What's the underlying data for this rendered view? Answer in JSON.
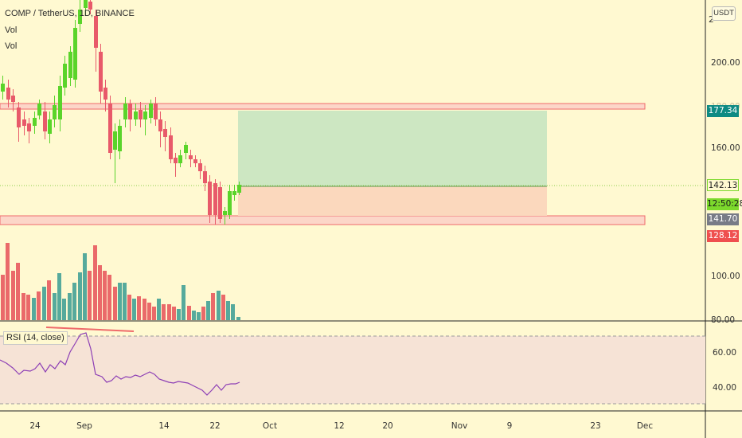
{
  "header": {
    "symbol_title": "COMP / TetherUS, 1D, BINANCE",
    "vol_label_1": "Vol",
    "vol_label_2": "Vol"
  },
  "currency_button": "USDT",
  "price_axis": {
    "top_partial": "2",
    "ticks": [
      "200.00",
      "160.00",
      "100.00",
      "80.00"
    ],
    "faint_tick": "180.00"
  },
  "price_tags": {
    "target": {
      "label": "177.34",
      "color": "#0e8a83"
    },
    "current": {
      "label": "142.13",
      "color": "#7cd92c"
    },
    "countdown": {
      "label": "12:50:28",
      "color": "#7cd92c"
    },
    "stop_entry": {
      "label": "141.70",
      "color": "#787b86"
    },
    "stop": {
      "label": "128.12",
      "color": "#ef4f4f"
    }
  },
  "rsi": {
    "label": "RSI (14, close)",
    "axis_ticks": [
      "60.00",
      "40.00"
    ]
  },
  "time_axis": {
    "labels": [
      "24",
      "Sep",
      "14",
      "22",
      "Oct",
      "12",
      "20",
      "Nov",
      "9",
      "23",
      "Dec"
    ]
  },
  "colors": {
    "background": "#fff9d1",
    "up": "#5ad42a",
    "down": "#e85a6a",
    "vol_up": "#56aa9c",
    "vol_down": "#ea6a6a",
    "rsi_line": "#8d3fb5",
    "zone_border": "#ef6b6b",
    "zone_fill": "#fcd6c8"
  }
}
